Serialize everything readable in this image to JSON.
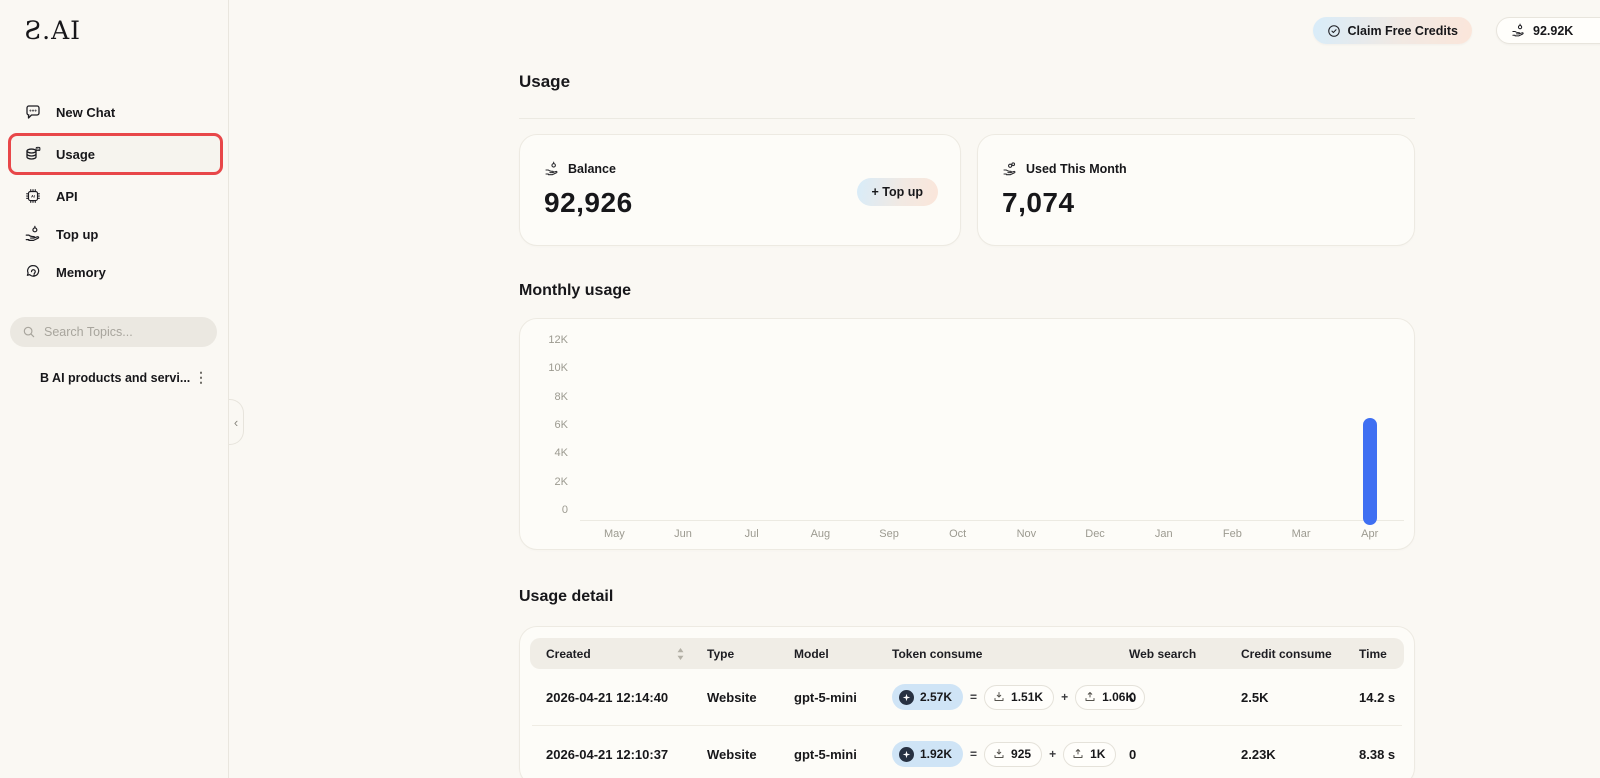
{
  "logo": {
    "text": "Ƨ.AI"
  },
  "topbar": {
    "claim_button": "Claim Free Credits",
    "credits_value": "92.92K"
  },
  "sidebar": {
    "items": [
      {
        "label": "New Chat",
        "icon": "chat-bubble-icon",
        "selected": false
      },
      {
        "label": "Usage",
        "icon": "usage-database-icon",
        "selected": true
      },
      {
        "label": "API",
        "icon": "api-chip-icon",
        "selected": false
      },
      {
        "label": "Top up",
        "icon": "topup-hand-coin-icon",
        "selected": false
      },
      {
        "label": "Memory",
        "icon": "memory-icon",
        "selected": false
      }
    ],
    "search": {
      "placeholder": "Search Topics..."
    },
    "chat_history": [
      {
        "title": "B AI products and servi..."
      }
    ]
  },
  "main": {
    "page_title": "Usage",
    "cards": {
      "balance": {
        "label": "Balance",
        "value": "92,926",
        "topup_button": "+ Top up"
      },
      "used": {
        "label": "Used This Month",
        "value": "7,074"
      }
    },
    "sections": {
      "monthly": "Monthly usage",
      "detail": "Usage detail"
    }
  },
  "chart_data": {
    "type": "bar",
    "title": "Monthly usage",
    "categories": [
      "May",
      "Jun",
      "Jul",
      "Aug",
      "Sep",
      "Oct",
      "Nov",
      "Dec",
      "Jan",
      "Feb",
      "Mar",
      "Apr"
    ],
    "values": [
      0,
      0,
      0,
      0,
      0,
      0,
      0,
      0,
      0,
      0,
      0,
      7074
    ],
    "xlabel": "",
    "ylabel": "",
    "ylim": [
      0,
      12000
    ],
    "yticks": [
      12000,
      10000,
      8000,
      6000,
      4000,
      2000,
      0
    ],
    "ytick_labels": [
      "12K",
      "10K",
      "8K",
      "6K",
      "4K",
      "2K",
      "0"
    ],
    "grid": false,
    "legend": false,
    "bar_color": "#3f6ff2"
  },
  "table": {
    "columns": [
      "Created",
      "Type",
      "Model",
      "Token consume",
      "Web search",
      "Credit consume",
      "Time"
    ],
    "ops": {
      "equals": "=",
      "plus": "+"
    },
    "rows": [
      {
        "created": "2026-04-21 12:14:40",
        "type": "Website",
        "model": "gpt-5-mini",
        "token_total": "2.57K",
        "token_input": "1.51K",
        "token_output": "1.06K",
        "web_search": "0",
        "credit_consume": "2.5K",
        "time": "14.2 s"
      },
      {
        "created": "2026-04-21 12:10:37",
        "type": "Website",
        "model": "gpt-5-mini",
        "token_total": "1.92K",
        "token_input": "925",
        "token_output": "1K",
        "web_search": "0",
        "credit_consume": "2.23K",
        "time": "8.38 s"
      }
    ]
  },
  "colors": {
    "background": "#faf8f3",
    "accent_blue": "#3f6ff2",
    "annotation_red": "#e84749",
    "token_pill_blue": "#cfe4f6",
    "pill_gradient_start": "#d8ecf9",
    "pill_gradient_end": "#fbe6da",
    "table_header_bg": "#f0ede6"
  }
}
